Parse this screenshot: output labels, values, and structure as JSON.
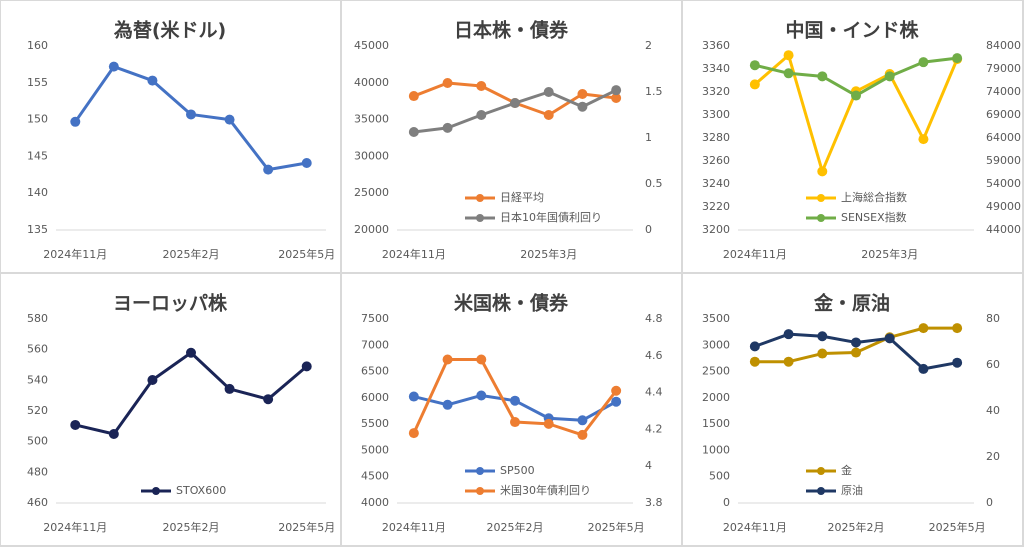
{
  "chart_data": [
    {
      "type": "line",
      "title": "為替(米ドル)",
      "categories": [
        "2024年11月",
        null,
        null,
        "2025年2月",
        null,
        null,
        "2025年5月"
      ],
      "series": [
        {
          "name": null,
          "color": "#4472c4",
          "values": [
            149.7,
            157.2,
            155.3,
            150.7,
            150.0,
            143.2,
            144.1
          ]
        }
      ],
      "ylim": [
        135,
        160
      ],
      "yticks": [
        135,
        140,
        145,
        150,
        155,
        160
      ],
      "grid": false
    },
    {
      "type": "line",
      "title": "日本株・債券",
      "categories": [
        "2024年11月",
        null,
        null,
        null,
        "2025年3月",
        null,
        null
      ],
      "series": [
        {
          "name": "日経平均",
          "color": "#ed7d31",
          "values": [
            38200,
            39970,
            39565,
            37255,
            35625,
            38480,
            37935
          ]
        },
        {
          "name": "日本10年国債利回り",
          "color": "#7f7f7f",
          "axis": "y2",
          "values": [
            1.065,
            1.11,
            1.25,
            1.38,
            1.5,
            1.34,
            1.52
          ]
        }
      ],
      "ylim": [
        20000,
        45000
      ],
      "yticks": [
        20000,
        25000,
        30000,
        35000,
        40000,
        45000
      ],
      "y2lim": [
        0,
        2
      ],
      "y2ticks": [
        0,
        0.5,
        1,
        1.5,
        2
      ],
      "grid": false
    },
    {
      "type": "line",
      "title": "中国・インド株",
      "categories": [
        "2024年11月",
        null,
        null,
        null,
        "2025年3月",
        null,
        null
      ],
      "series": [
        {
          "name": "上海総合指数",
          "color": "#ffc000",
          "values": [
            3326.6,
            3352,
            3251,
            3320.6,
            3335.6,
            3279,
            3348.6
          ]
        },
        {
          "name": "SENSEX指数",
          "color": "#70ad47",
          "axis": "y2",
          "values": [
            79824,
            78066,
            77407,
            73231,
            77407,
            80484,
            81363
          ]
        }
      ],
      "ylim": [
        3200,
        3360
      ],
      "yticks": [
        3200,
        3220,
        3240,
        3260,
        3280,
        3300,
        3320,
        3340,
        3360
      ],
      "y2lim": [
        44000,
        84000
      ],
      "y2ticks": [
        44000,
        49000,
        54000,
        59000,
        64000,
        69000,
        74000,
        79000,
        84000
      ],
      "grid": false
    },
    {
      "type": "line",
      "title": "ヨーロッパ株",
      "categories": [
        "2024年11月",
        null,
        null,
        "2025年2月",
        null,
        null,
        "2025年5月"
      ],
      "series": [
        {
          "name": "STOX600",
          "color": "#1a2456",
          "values": [
            510.9,
            505,
            540.2,
            558,
            534.4,
            527.7,
            549.1
          ]
        }
      ],
      "ylim": [
        460,
        580
      ],
      "yticks": [
        460,
        480,
        500,
        520,
        540,
        560,
        580
      ],
      "grid": false
    },
    {
      "type": "line",
      "title": "米国株・債券",
      "categories": [
        "2024年11月",
        null,
        null,
        "2025年2月",
        null,
        null,
        "2025年5月"
      ],
      "series": [
        {
          "name": "SP500",
          "color": "#4472c4",
          "values": [
            6025,
            5868,
            6045,
            5946,
            5612,
            5573,
            5927
          ]
        },
        {
          "name": "米国30年債利回り",
          "color": "#ed7d31",
          "axis": "y2",
          "values": [
            4.18,
            4.58,
            4.58,
            4.24,
            4.23,
            4.17,
            4.41
          ]
        }
      ],
      "ylim": [
        4000,
        7500
      ],
      "yticks": [
        4000,
        4500,
        5000,
        5500,
        6000,
        6500,
        7000,
        7500
      ],
      "y2lim": [
        3.8,
        4.8
      ],
      "y2ticks": [
        3.8,
        4,
        4.2,
        4.4,
        4.6,
        4.8
      ],
      "grid": false
    },
    {
      "type": "line",
      "title": "金・原油",
      "categories": [
        "2024年11月",
        null,
        null,
        "2025年2月",
        null,
        null,
        "2025年5月"
      ],
      "series": [
        {
          "name": "金",
          "color": "#bf9000",
          "values": [
            2688,
            2688,
            2843,
            2862,
            3152,
            3326,
            3326
          ]
        },
        {
          "name": "原油",
          "color": "#1f3864",
          "axis": "y2",
          "values": [
            68.1,
            73.4,
            72.5,
            69.8,
            71.6,
            58.3,
            61.0
          ]
        }
      ],
      "ylim": [
        0,
        3500
      ],
      "yticks": [
        0,
        500,
        1000,
        1500,
        2000,
        2500,
        3000,
        3500
      ],
      "y2lim": [
        0,
        80
      ],
      "y2ticks": [
        0,
        20,
        40,
        60,
        80
      ],
      "grid": false
    }
  ]
}
